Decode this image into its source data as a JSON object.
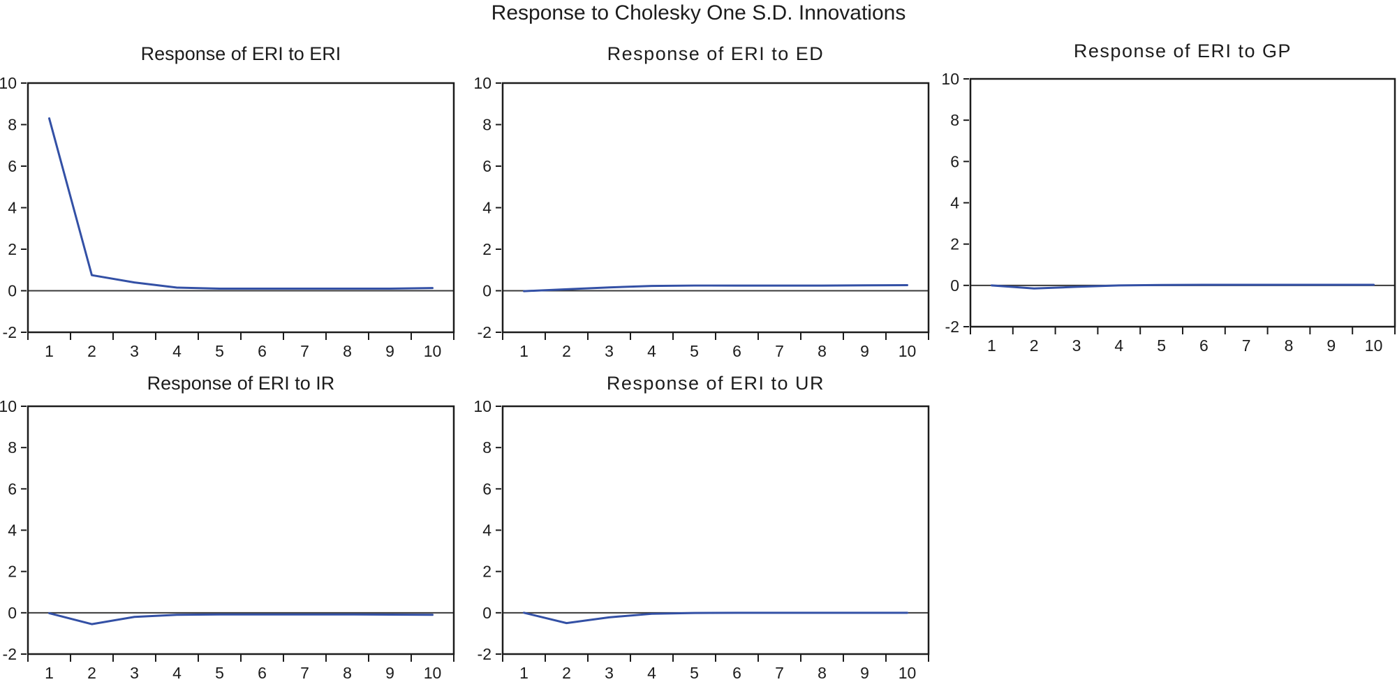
{
  "title": "Response to Cholesky One S.D. Innovations",
  "style": {
    "line_color": "#3350a5",
    "axis_color": "#1c1c1c",
    "zero_line_color": "#3a3a3a",
    "background_color": "#ffffff"
  },
  "chart_data": [
    {
      "type": "line",
      "title": "Response of ERI to ERI",
      "x": [
        1,
        2,
        3,
        4,
        5,
        6,
        7,
        8,
        9,
        10
      ],
      "values": [
        8.3,
        0.75,
        0.4,
        0.15,
        0.1,
        0.1,
        0.1,
        0.1,
        0.1,
        0.13
      ],
      "xlabel": "",
      "ylabel": "",
      "xlim": [
        0.5,
        10.5
      ],
      "ylim": [
        -2,
        10
      ],
      "xticks": [
        1,
        2,
        3,
        4,
        5,
        6,
        7,
        8,
        9,
        10
      ],
      "yticks": [
        -2,
        0,
        2,
        4,
        6,
        8,
        10
      ],
      "grid": false,
      "legend": "none",
      "zero_line": true
    },
    {
      "type": "line",
      "title": "Response of ERI to ED",
      "x": [
        1,
        2,
        3,
        4,
        5,
        6,
        7,
        8,
        9,
        10
      ],
      "values": [
        -0.02,
        0.07,
        0.16,
        0.23,
        0.25,
        0.25,
        0.25,
        0.25,
        0.26,
        0.27
      ],
      "xlabel": "",
      "ylabel": "",
      "xlim": [
        0.5,
        10.5
      ],
      "ylim": [
        -2,
        10
      ],
      "xticks": [
        1,
        2,
        3,
        4,
        5,
        6,
        7,
        8,
        9,
        10
      ],
      "yticks": [
        -2,
        0,
        2,
        4,
        6,
        8,
        10
      ],
      "grid": false,
      "legend": "none",
      "zero_line": true
    },
    {
      "type": "line",
      "title": "Response of ERI to GP",
      "x": [
        1,
        2,
        3,
        4,
        5,
        6,
        7,
        8,
        9,
        10
      ],
      "values": [
        0.0,
        -0.15,
        -0.07,
        0.0,
        0.02,
        0.03,
        0.03,
        0.03,
        0.03,
        0.03
      ],
      "xlabel": "",
      "ylabel": "",
      "xlim": [
        0.5,
        10.5
      ],
      "ylim": [
        -2,
        10
      ],
      "xticks": [
        1,
        2,
        3,
        4,
        5,
        6,
        7,
        8,
        9,
        10
      ],
      "yticks": [
        -2,
        0,
        2,
        4,
        6,
        8,
        10
      ],
      "grid": false,
      "legend": "none",
      "zero_line": true
    },
    {
      "type": "line",
      "title": "Response of ERI to IR",
      "x": [
        1,
        2,
        3,
        4,
        5,
        6,
        7,
        8,
        9,
        10
      ],
      "values": [
        -0.02,
        -0.55,
        -0.2,
        -0.1,
        -0.08,
        -0.08,
        -0.08,
        -0.08,
        -0.09,
        -0.1
      ],
      "xlabel": "",
      "ylabel": "",
      "xlim": [
        0.5,
        10.5
      ],
      "ylim": [
        -2,
        10
      ],
      "xticks": [
        1,
        2,
        3,
        4,
        5,
        6,
        7,
        8,
        9,
        10
      ],
      "yticks": [
        -2,
        0,
        2,
        4,
        6,
        8,
        10
      ],
      "grid": false,
      "legend": "none",
      "zero_line": true
    },
    {
      "type": "line",
      "title": "Response of ERI to UR",
      "x": [
        1,
        2,
        3,
        4,
        5,
        6,
        7,
        8,
        9,
        10
      ],
      "values": [
        0.0,
        -0.5,
        -0.22,
        -0.05,
        -0.01,
        0.0,
        0.0,
        0.0,
        0.0,
        0.0
      ],
      "xlabel": "",
      "ylabel": "",
      "xlim": [
        0.5,
        10.5
      ],
      "ylim": [
        -2,
        10
      ],
      "xticks": [
        1,
        2,
        3,
        4,
        5,
        6,
        7,
        8,
        9,
        10
      ],
      "yticks": [
        -2,
        0,
        2,
        4,
        6,
        8,
        10
      ],
      "grid": false,
      "legend": "none",
      "zero_line": true
    }
  ]
}
